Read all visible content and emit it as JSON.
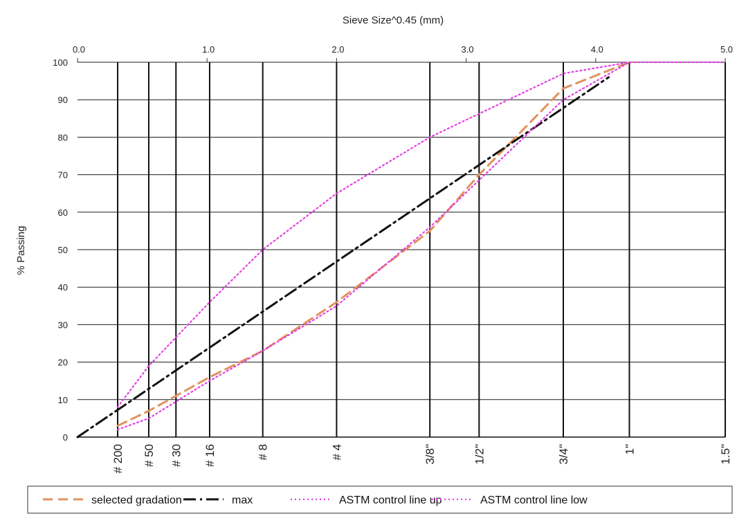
{
  "chart_data": {
    "type": "line",
    "title": "Sieve Size^0.45  (mm)",
    "ylabel": "% Passing",
    "x_axis": {
      "label": "Sieve Size^0.45  (mm)",
      "scale": "power 0.45 of sieve size (mm)",
      "range": [
        0,
        5
      ],
      "ticks": [
        "0.0",
        "1.0",
        "2.0",
        "3.0",
        "4.0",
        "5.0"
      ],
      "tick_values": [
        0,
        1,
        2,
        3,
        4,
        5
      ]
    },
    "y_axis": {
      "range": [
        0,
        100
      ],
      "ticks": [
        "0",
        "10",
        "20",
        "30",
        "40",
        "50",
        "60",
        "70",
        "80",
        "90",
        "100"
      ],
      "tick_values": [
        0,
        10,
        20,
        30,
        40,
        50,
        60,
        70,
        80,
        90,
        100
      ]
    },
    "sieves": [
      {
        "label": "# 200",
        "x": 0.31
      },
      {
        "label": "# 50",
        "x": 0.55
      },
      {
        "label": "# 30",
        "x": 0.76
      },
      {
        "label": "# 16",
        "x": 1.02
      },
      {
        "label": "# 8",
        "x": 1.43
      },
      {
        "label": "# 4",
        "x": 2.0
      },
      {
        "label": "3/8\"",
        "x": 2.72
      },
      {
        "label": "1/2\"",
        "x": 3.1
      },
      {
        "label": "3/4\"",
        "x": 3.75
      },
      {
        "label": "1\"",
        "x": 4.26
      },
      {
        "label": "1.5\"",
        "x": 5.0
      }
    ],
    "grid": true,
    "legend_position": "bottom",
    "series": [
      {
        "name": "selected gradation",
        "style": "dashed",
        "color": "#e0925c",
        "points": [
          [
            0.31,
            3
          ],
          [
            0.55,
            7
          ],
          [
            0.76,
            11
          ],
          [
            1.02,
            16
          ],
          [
            1.43,
            23
          ],
          [
            2.0,
            36
          ],
          [
            2.72,
            55
          ],
          [
            3.1,
            70
          ],
          [
            3.75,
            93
          ],
          [
            4.26,
            100
          ]
        ]
      },
      {
        "name": "max",
        "style": "dash-dot",
        "color": "#111111",
        "points": [
          [
            0.0,
            0
          ],
          [
            4.1,
            96
          ]
        ]
      },
      {
        "name": "ASTM control line up",
        "style": "dotted",
        "color": "#e33fe3",
        "points": [
          [
            0.31,
            8
          ],
          [
            0.55,
            19
          ],
          [
            1.02,
            36
          ],
          [
            1.43,
            50
          ],
          [
            2.0,
            65
          ],
          [
            2.72,
            80
          ],
          [
            3.75,
            97
          ],
          [
            4.26,
            100
          ]
        ]
      },
      {
        "name": "ASTM control line low",
        "style": "dotted",
        "color": "#e33fe3",
        "points": [
          [
            0.31,
            2
          ],
          [
            0.55,
            5
          ],
          [
            1.02,
            15
          ],
          [
            1.43,
            23
          ],
          [
            2.0,
            35
          ],
          [
            2.72,
            56
          ],
          [
            3.75,
            90
          ],
          [
            4.26,
            100
          ],
          [
            5.0,
            100
          ]
        ]
      }
    ]
  }
}
